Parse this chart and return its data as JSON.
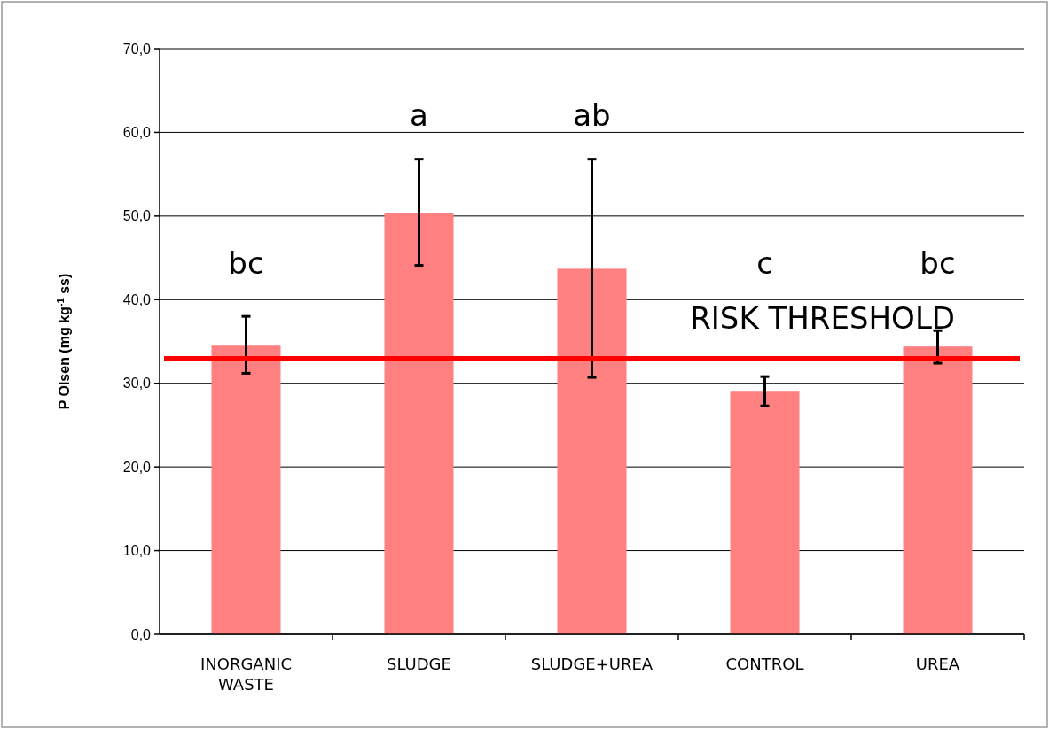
{
  "chart_data": {
    "type": "bar",
    "ylabel": "P Olsen (mg kg$^{-1}$ ss)",
    "categories": [
      "INORGANIC WASTE",
      "SLUDGE",
      "SLUDGE+UREA",
      "CONTROL",
      "UREA"
    ],
    "values": [
      34.5,
      50.4,
      43.7,
      29.1,
      34.4
    ],
    "errors": [
      [
        31.2,
        38.0
      ],
      [
        44.1,
        56.8
      ],
      [
        30.7,
        56.8
      ],
      [
        27.3,
        30.8
      ],
      [
        32.4,
        36.3
      ]
    ],
    "color": "#ff8080",
    "ylim": [
      0,
      70
    ],
    "yticks": [
      {
        "value": 0,
        "label": "0,0"
      },
      {
        "value": 10,
        "label": "10,0"
      },
      {
        "value": 20,
        "label": "20,0"
      },
      {
        "value": 30,
        "label": "30,0"
      },
      {
        "value": 40,
        "label": "40,0"
      },
      {
        "value": 50,
        "label": "50,0"
      },
      {
        "value": 60,
        "label": "60,0"
      },
      {
        "value": 70,
        "label": "70,0"
      }
    ],
    "grid": "y",
    "ref_lines": [
      {
        "axis": "y",
        "value": 33,
        "label": "RISK THRESHOLD",
        "color": "#ff0000"
      }
    ],
    "annotations": [
      "bc",
      "a",
      "ab",
      "c",
      "bc"
    ]
  }
}
